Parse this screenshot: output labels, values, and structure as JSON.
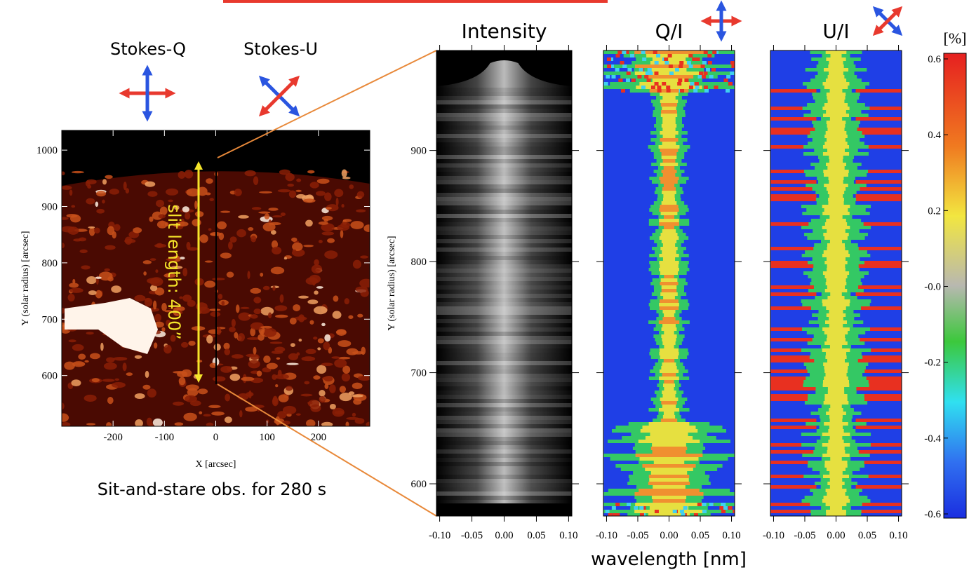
{
  "context_map": {
    "stokes_labels": [
      "Stokes-Q",
      "Stokes-U"
    ],
    "xlabel": "X [arcsec]",
    "ylabel": "Y (solar radius) [arcsec]",
    "xlim": [
      -300,
      300
    ],
    "ylim": [
      510,
      1035
    ],
    "xticks": [
      -200,
      -100,
      0,
      100,
      200
    ],
    "yticks": [
      600,
      700,
      800,
      900,
      1000
    ],
    "slit_label": "slit length: 400”",
    "caption": "Sit-and-stare obs. for 280 s"
  },
  "spectra": {
    "ylabel": "Y (solar radius) [arcsec]",
    "xlabel": "wavelength [nm]",
    "ylim": [
      571,
      990
    ],
    "yticks": [
      600,
      700,
      800,
      900
    ],
    "xlim": [
      -0.105,
      0.105
    ],
    "xticks": [
      {
        "value": -0.1,
        "label": "-0.10"
      },
      {
        "value": -0.05,
        "label": "-0.05"
      },
      {
        "value": 0,
        "label": "0.00"
      },
      {
        "value": 0.05,
        "label": "0.05"
      },
      {
        "value": 0.1,
        "label": "0.10"
      }
    ],
    "panels": [
      {
        "title": "Intensity"
      },
      {
        "title": "Q/I"
      },
      {
        "title": "U/I"
      }
    ]
  },
  "colorbar": {
    "unit": "[%]",
    "lim": [
      -0.6,
      0.6
    ],
    "ticks": [
      0.6,
      0.4,
      0.2,
      {
        "value": 0,
        "label": "-0.0"
      },
      -0.2,
      -0.4,
      -0.6
    ]
  }
}
